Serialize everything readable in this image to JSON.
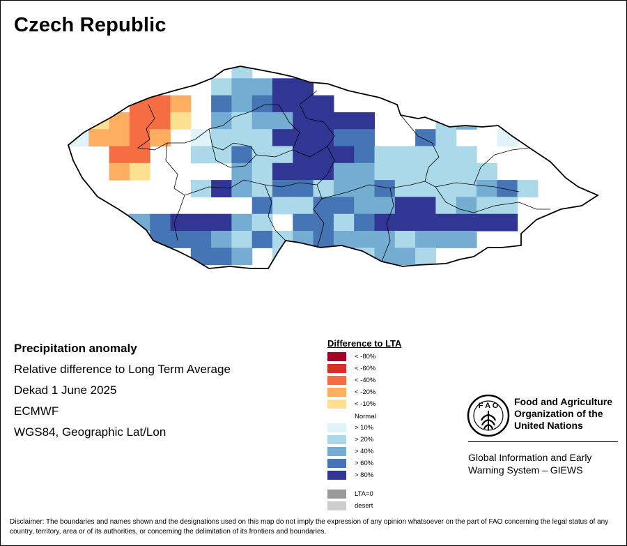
{
  "title": "Czech Republic",
  "info": {
    "heading": "Precipitation anomaly",
    "line1": "Relative difference to Long Term Average",
    "line2": "Dekad 1 June 2025",
    "line3": "ECMWF",
    "line4": "WGS84, Geographic Lat/Lon"
  },
  "legend": {
    "title": "Difference to LTA",
    "items": [
      {
        "label": "< -80%",
        "color": "#a50026"
      },
      {
        "label": "< -60%",
        "color": "#d73027"
      },
      {
        "label": "< -40%",
        "color": "#f46d43"
      },
      {
        "label": "< -20%",
        "color": "#fdae61"
      },
      {
        "label": "< -10%",
        "color": "#fee090"
      },
      {
        "label": "Normal",
        "color": "#ffffff"
      },
      {
        "label": "> 10%",
        "color": "#e0f3f8"
      },
      {
        "label": "> 20%",
        "color": "#abd9e9"
      },
      {
        "label": "> 40%",
        "color": "#74add1"
      },
      {
        "label": "> 60%",
        "color": "#4575b4"
      },
      {
        "label": "> 80%",
        "color": "#313695"
      },
      {
        "label": "LTA=0",
        "color": "#999999"
      },
      {
        "label": "desert",
        "color": "#cccccc"
      }
    ]
  },
  "fao": {
    "name": "Food and Agriculture Organization of the United Nations",
    "giews": "Global Information and Early Warning System – GIEWS"
  },
  "disclaimer": "Disclaimer: The boundaries and names shown and the designations used on this map do not imply the expression of any opinion whatsoever on the part of FAO concerning the legal status of any country, territory, area or of its authorities, or concerning the delimitation of its frontiers and boundaries.",
  "grid": {
    "key": {
      "w": "#ffffff",
      "a": "#e0f3f8",
      "b": "#abd9e9",
      "c": "#74add1",
      "d": "#4575b4",
      "e": "#313695",
      "o": "#fdae61",
      "y": "#fee090",
      "r": "#f46d43"
    },
    "rows": [
      "wwwwwwwwbwwbwwwwwwwwwwwwww",
      "wwwwwwwbcceewwwwwwwwwwwwww",
      "wwwrrowdcdeeewwwwwwwwwwwww",
      "oyorrywcbcceeeewwwbcwwwwww",
      "aoorowabbbeeeddwwdbwwawwww",
      "wwrrwwbbdbbeeedbbbbbwwwwww",
      "wwoywwwwcbeeeccbbbbbbwwwww",
      "wwwwwwbecbddbccdbbbbcdbwww",
      "wwwwwwwwwdbbddcceebcbbwwww",
      "bbbcdeeecbwddbdeeeeeeewwww",
      "wbcbdddcbdbcdcccbcccwwwwww",
      "wwbbcwddcwbbddbccbwwwwwwww",
      "wwwwwwwwwwwwwwwcwwwwwwwwww"
    ]
  }
}
